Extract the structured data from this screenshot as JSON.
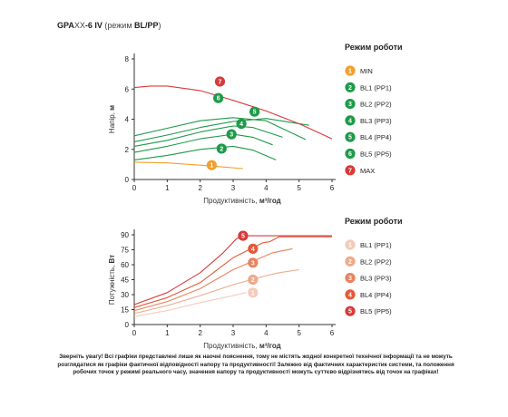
{
  "title": {
    "model_prefix": "GPA",
    "model_xx": "XX",
    "model_suffix": "-6 IV",
    "mode_open": " (режим ",
    "mode": "BL/PP",
    "mode_close": ")"
  },
  "colors": {
    "orange": "#f0a030",
    "green": "#1f9a4a",
    "red": "#d83a3a",
    "pink1": "#f4cbbb",
    "pink2": "#eea98c",
    "pink3": "#e8835f",
    "pink4": "#e25a3a",
    "axis": "#333333"
  },
  "chart_data": [
    {
      "type": "line",
      "name": "head",
      "ylabel_text": "Напір, ",
      "ylabel_unit": "м",
      "xlabel_text": "Продуктивність, ",
      "xlabel_unit": "м³/год",
      "xlim": [
        0,
        6
      ],
      "ylim": [
        0,
        8
      ],
      "xticks": [
        "0",
        "1",
        "2",
        "3",
        "4",
        "5",
        "6"
      ],
      "yticks": [
        "0",
        "2",
        "4",
        "6",
        "8"
      ],
      "legend_title": "Режим роботи",
      "series": [
        {
          "id": "1",
          "name": "MIN",
          "color": "orange",
          "points": [
            [
              0,
              1.15
            ],
            [
              1,
              1.1
            ],
            [
              2,
              0.95
            ],
            [
              3.3,
              0.72
            ]
          ],
          "badge": [
            2.35,
            0.95
          ]
        },
        {
          "id": "2",
          "name": "BL1 (PP1)",
          "color": "green",
          "points": [
            [
              0,
              1.3
            ],
            [
              1,
              1.6
            ],
            [
              2,
              2.0
            ],
            [
              3,
              2.2
            ],
            [
              3.6,
              1.95
            ],
            [
              4.3,
              1.3
            ]
          ],
          "badge": [
            2.65,
            2.05
          ]
        },
        {
          "id": "3",
          "name": "BL2 (PP2)",
          "color": "green",
          "points": [
            [
              0,
              1.8
            ],
            [
              1,
              2.2
            ],
            [
              2,
              2.7
            ],
            [
              3,
              3.0
            ],
            [
              3.6,
              2.8
            ],
            [
              4.2,
              2.3
            ]
          ],
          "badge": [
            2.95,
            3.0
          ]
        },
        {
          "id": "4",
          "name": "BL3 (PP3)",
          "color": "green",
          "points": [
            [
              0,
              2.2
            ],
            [
              1,
              2.6
            ],
            [
              2,
              3.15
            ],
            [
              3,
              3.55
            ],
            [
              3.6,
              3.45
            ],
            [
              4.5,
              2.8
            ]
          ],
          "badge": [
            3.25,
            3.7
          ]
        },
        {
          "id": "5",
          "name": "BL4 (PP4)",
          "color": "green",
          "points": [
            [
              0,
              2.5
            ],
            [
              1,
              2.95
            ],
            [
              2,
              3.45
            ],
            [
              3,
              3.85
            ],
            [
              4,
              4.05
            ],
            [
              5.3,
              3.6
            ]
          ],
          "badge": [
            3.65,
            4.5
          ]
        },
        {
          "id": "6",
          "name": "BL5 (PP5)",
          "color": "green",
          "points": [
            [
              0,
              2.9
            ],
            [
              1,
              3.4
            ],
            [
              2,
              3.9
            ],
            [
              3,
              4.1
            ],
            [
              4,
              3.9
            ],
            [
              5.2,
              2.65
            ]
          ],
          "badge": [
            2.55,
            5.4
          ]
        },
        {
          "id": "7",
          "name": "MAX",
          "color": "red",
          "points": [
            [
              0,
              6.1
            ],
            [
              0.5,
              6.2
            ],
            [
              1,
              6.2
            ],
            [
              2,
              5.9
            ],
            [
              3,
              5.25
            ],
            [
              4,
              4.55
            ],
            [
              5,
              3.7
            ],
            [
              6,
              2.7
            ]
          ],
          "badge": [
            2.6,
            6.5
          ]
        }
      ]
    },
    {
      "type": "line",
      "name": "power",
      "ylabel_text": "Потужність, ",
      "ylabel_unit": "Вт",
      "xlabel_text": "Продуктивність, ",
      "xlabel_unit": "м³/год",
      "xlim": [
        0,
        6
      ],
      "ylim": [
        0,
        90
      ],
      "xticks": [
        "0",
        "1",
        "2",
        "3",
        "4",
        "5",
        "6"
      ],
      "yticks": [
        "0",
        "15",
        "30",
        "45",
        "60",
        "75",
        "90"
      ],
      "legend_title": "Режим роботи",
      "series": [
        {
          "id": "1",
          "name": "BL1 (PP1)",
          "color": "pink1",
          "points": [
            [
              0,
              8
            ],
            [
              1,
              14
            ],
            [
              2,
              22
            ],
            [
              3,
              29
            ],
            [
              3.4,
              32
            ]
          ],
          "badge": [
            3.6,
            32
          ]
        },
        {
          "id": "2",
          "name": "BL2 (PP2)",
          "color": "pink2",
          "points": [
            [
              0,
              11
            ],
            [
              1,
              19
            ],
            [
              2,
              29
            ],
            [
              3,
              40
            ],
            [
              4,
              49
            ],
            [
              4.4,
              52
            ],
            [
              5,
              55
            ]
          ],
          "badge": [
            3.6,
            45
          ]
        },
        {
          "id": "3",
          "name": "BL3 (PP3)",
          "color": "pink3",
          "points": [
            [
              0,
              14
            ],
            [
              1,
              23
            ],
            [
              2,
              36
            ],
            [
              3,
              55
            ],
            [
              4.2,
              72
            ],
            [
              4.8,
              76
            ]
          ],
          "badge": [
            3.6,
            62
          ]
        },
        {
          "id": "4",
          "name": "BL4 (PP4)",
          "color": "pink4",
          "points": [
            [
              0,
              17
            ],
            [
              1,
              27
            ],
            [
              2,
              42
            ],
            [
              3,
              67
            ],
            [
              3.9,
              82
            ],
            [
              4.1,
              83
            ],
            [
              4.4,
              88
            ],
            [
              6,
              88
            ]
          ],
          "badge": [
            3.6,
            76
          ]
        },
        {
          "id": "5",
          "name": "BL5 (PP5)",
          "color": "red",
          "points": [
            [
              0,
              20
            ],
            [
              1,
              32
            ],
            [
              2,
              52
            ],
            [
              2.7,
              72
            ],
            [
              3.1,
              86
            ],
            [
              3.3,
              89
            ],
            [
              4.5,
              89
            ],
            [
              6,
              89
            ]
          ],
          "badge": [
            3.3,
            89
          ]
        }
      ]
    }
  ],
  "note": "Зверніть увагу! Всі графіки представлені лише як наочні пояснення, тому не містять жодної конкретної технічної інформації та не можуть розглядатися як графіки фактичної відповідності напору та продуктивності! Залежно від фактичних характеристик системи, та положення робочих точок у режимі реального часу, значення напору та продуктивності можуть суттєво відрізнятись від точок на графіках!"
}
